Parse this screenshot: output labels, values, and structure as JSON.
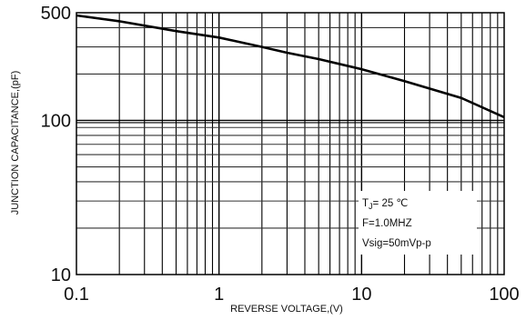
{
  "chart_data": {
    "type": "line",
    "title": "",
    "xlabel": "REVERSE VOLTAGE,(V)",
    "ylabel": "JUNCTION CAPACITANCE,(pF)",
    "x_scale": "log",
    "y_scale": "log",
    "xlim": [
      0.1,
      100
    ],
    "ylim": [
      10,
      500
    ],
    "x_ticks": [
      "0.1",
      "1",
      "10",
      "100"
    ],
    "y_ticks": [
      "500",
      "100",
      "10"
    ],
    "grid": true,
    "series": [
      {
        "x": [
          0.1,
          0.2,
          0.5,
          1,
          2,
          3,
          5,
          10,
          20,
          50,
          100
        ],
        "y": [
          480,
          440,
          380,
          345,
          300,
          275,
          250,
          215,
          180,
          140,
          105
        ]
      }
    ],
    "annotation": {
      "tj_prefix": "T",
      "tj_sub": "J",
      "tj_rest": "= 25 ℃",
      "freq": "F=1.0MHZ",
      "vsig": "Vsig=50mVp-p"
    }
  }
}
